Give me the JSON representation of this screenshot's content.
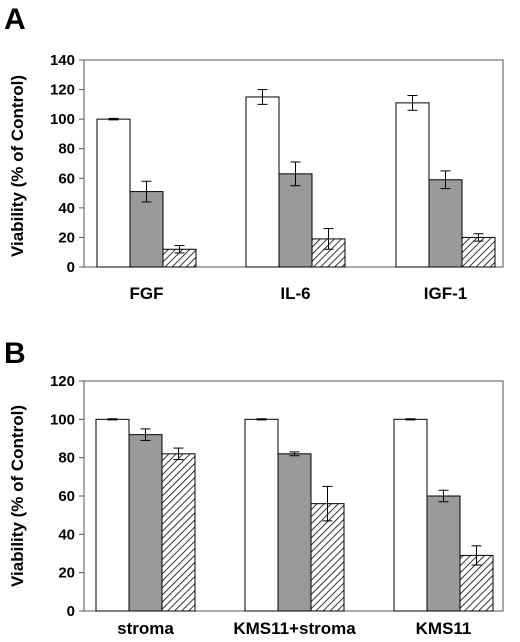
{
  "chart_data": [
    {
      "panel": "A",
      "type": "bar",
      "ylabel": "Viability (% of Control)",
      "xlabel": "",
      "ylim": [
        0,
        140
      ],
      "yticks": [
        0,
        20,
        40,
        60,
        80,
        100,
        120,
        140
      ],
      "categories": [
        "FGF",
        "IL-6",
        "IGF-1"
      ],
      "series": [
        {
          "values": [
            100,
            115,
            111
          ],
          "errors": [
            0.5,
            5,
            5
          ],
          "fill": "white"
        },
        {
          "values": [
            51,
            63,
            59
          ],
          "errors": [
            7,
            8,
            6
          ],
          "fill": "gray"
        },
        {
          "values": [
            12,
            19,
            20
          ],
          "errors": [
            2.5,
            7,
            2.5
          ],
          "fill": "hatched"
        }
      ],
      "grid": false
    },
    {
      "panel": "B",
      "type": "bar",
      "ylabel": "Viability (% of Control)",
      "xlabel": "",
      "ylim": [
        0,
        120
      ],
      "yticks": [
        0,
        20,
        40,
        60,
        80,
        100,
        120
      ],
      "categories": [
        "stroma",
        "KMS11+stroma",
        "KMS11"
      ],
      "series": [
        {
          "values": [
            100,
            100,
            100
          ],
          "errors": [
            0.3,
            0.3,
            0.3
          ],
          "fill": "white"
        },
        {
          "values": [
            92,
            82,
            60
          ],
          "errors": [
            3,
            1,
            3
          ],
          "fill": "gray"
        },
        {
          "values": [
            82,
            56,
            29
          ],
          "errors": [
            3,
            9,
            5
          ],
          "fill": "hatched"
        }
      ],
      "grid": false
    }
  ],
  "colors": {
    "gray_bar": "#9a9a9a",
    "white_bar": "#ffffff",
    "outline": "#000000"
  }
}
